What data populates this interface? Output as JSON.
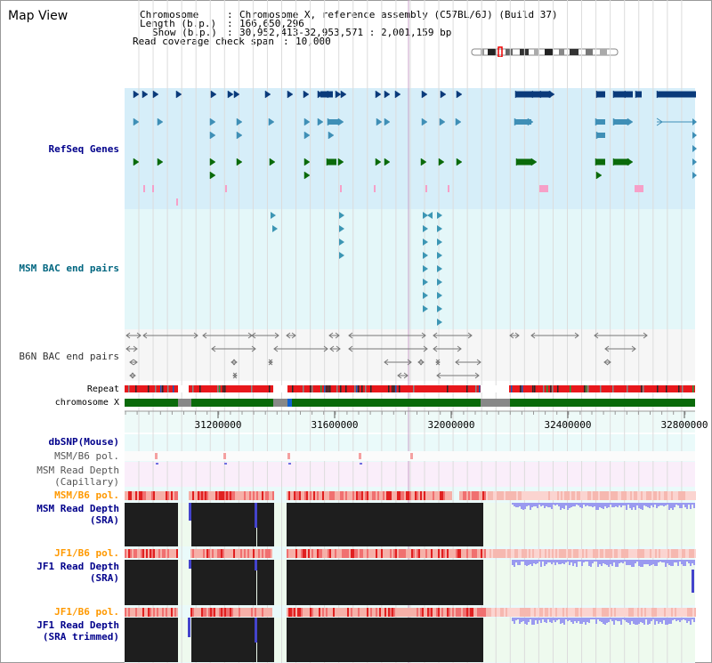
{
  "page_title": "Map View",
  "header": {
    "chromosome_key": "Chromosome",
    "chromosome_val": "Chromosome X, reference assembly (C57BL/6J) (Build 37)",
    "length_key": "Length (b.p.)",
    "length_val": "166,650,296",
    "show_key": "Show (b.p.)",
    "show_val": "30,952,413-32,953,571 : 2,001,159 bp",
    "coverage_key": "Read coverage check span",
    "coverage_val": "10,000"
  },
  "tracks": {
    "refseq": "RefSeq Genes",
    "msm_bac": "MSM BAC end pairs",
    "b6n_bac": "B6N BAC end pairs",
    "repeat": "Repeat",
    "chromosome": "chromosome X",
    "dbsnp": "dbSNP(Mouse)",
    "msm_b6_pol_1": "MSM/B6 pol.",
    "msm_depth_cap_1": "MSM Read Depth",
    "msm_depth_cap_2": "(Capillary)",
    "msm_b6_pol_2": "MSM/B6 pol.",
    "msm_depth_sra_1": "MSM Read Depth",
    "msm_depth_sra_2": "(SRA)",
    "jf1_b6_pol_1": "JF1/B6 pol.",
    "jf1_depth_sra_1": "JF1 Read Depth",
    "jf1_depth_sra_2": "(SRA)",
    "jf1_b6_pol_2": "JF1/B6 pol.",
    "jf1_depth_trim_1": "JF1 Read Depth",
    "jf1_depth_trim_2": "(SRA trimmed)"
  },
  "axis_ticks": [
    "31200000",
    "31600000",
    "32000000",
    "32400000",
    "32800000"
  ],
  "colors": {
    "label_blue": "#00008b",
    "label_teal": "#006680",
    "label_orange": "#ff9900",
    "label_gray": "#333333",
    "refseq_bg": "#d6eef9",
    "msm_bac_bg": "#e4f7f9",
    "chromosome_green": "#0a6a0a",
    "repeat_red": "#e8181c",
    "depth_black": "#1e1e1e",
    "depth_blue": "#4444cc"
  }
}
